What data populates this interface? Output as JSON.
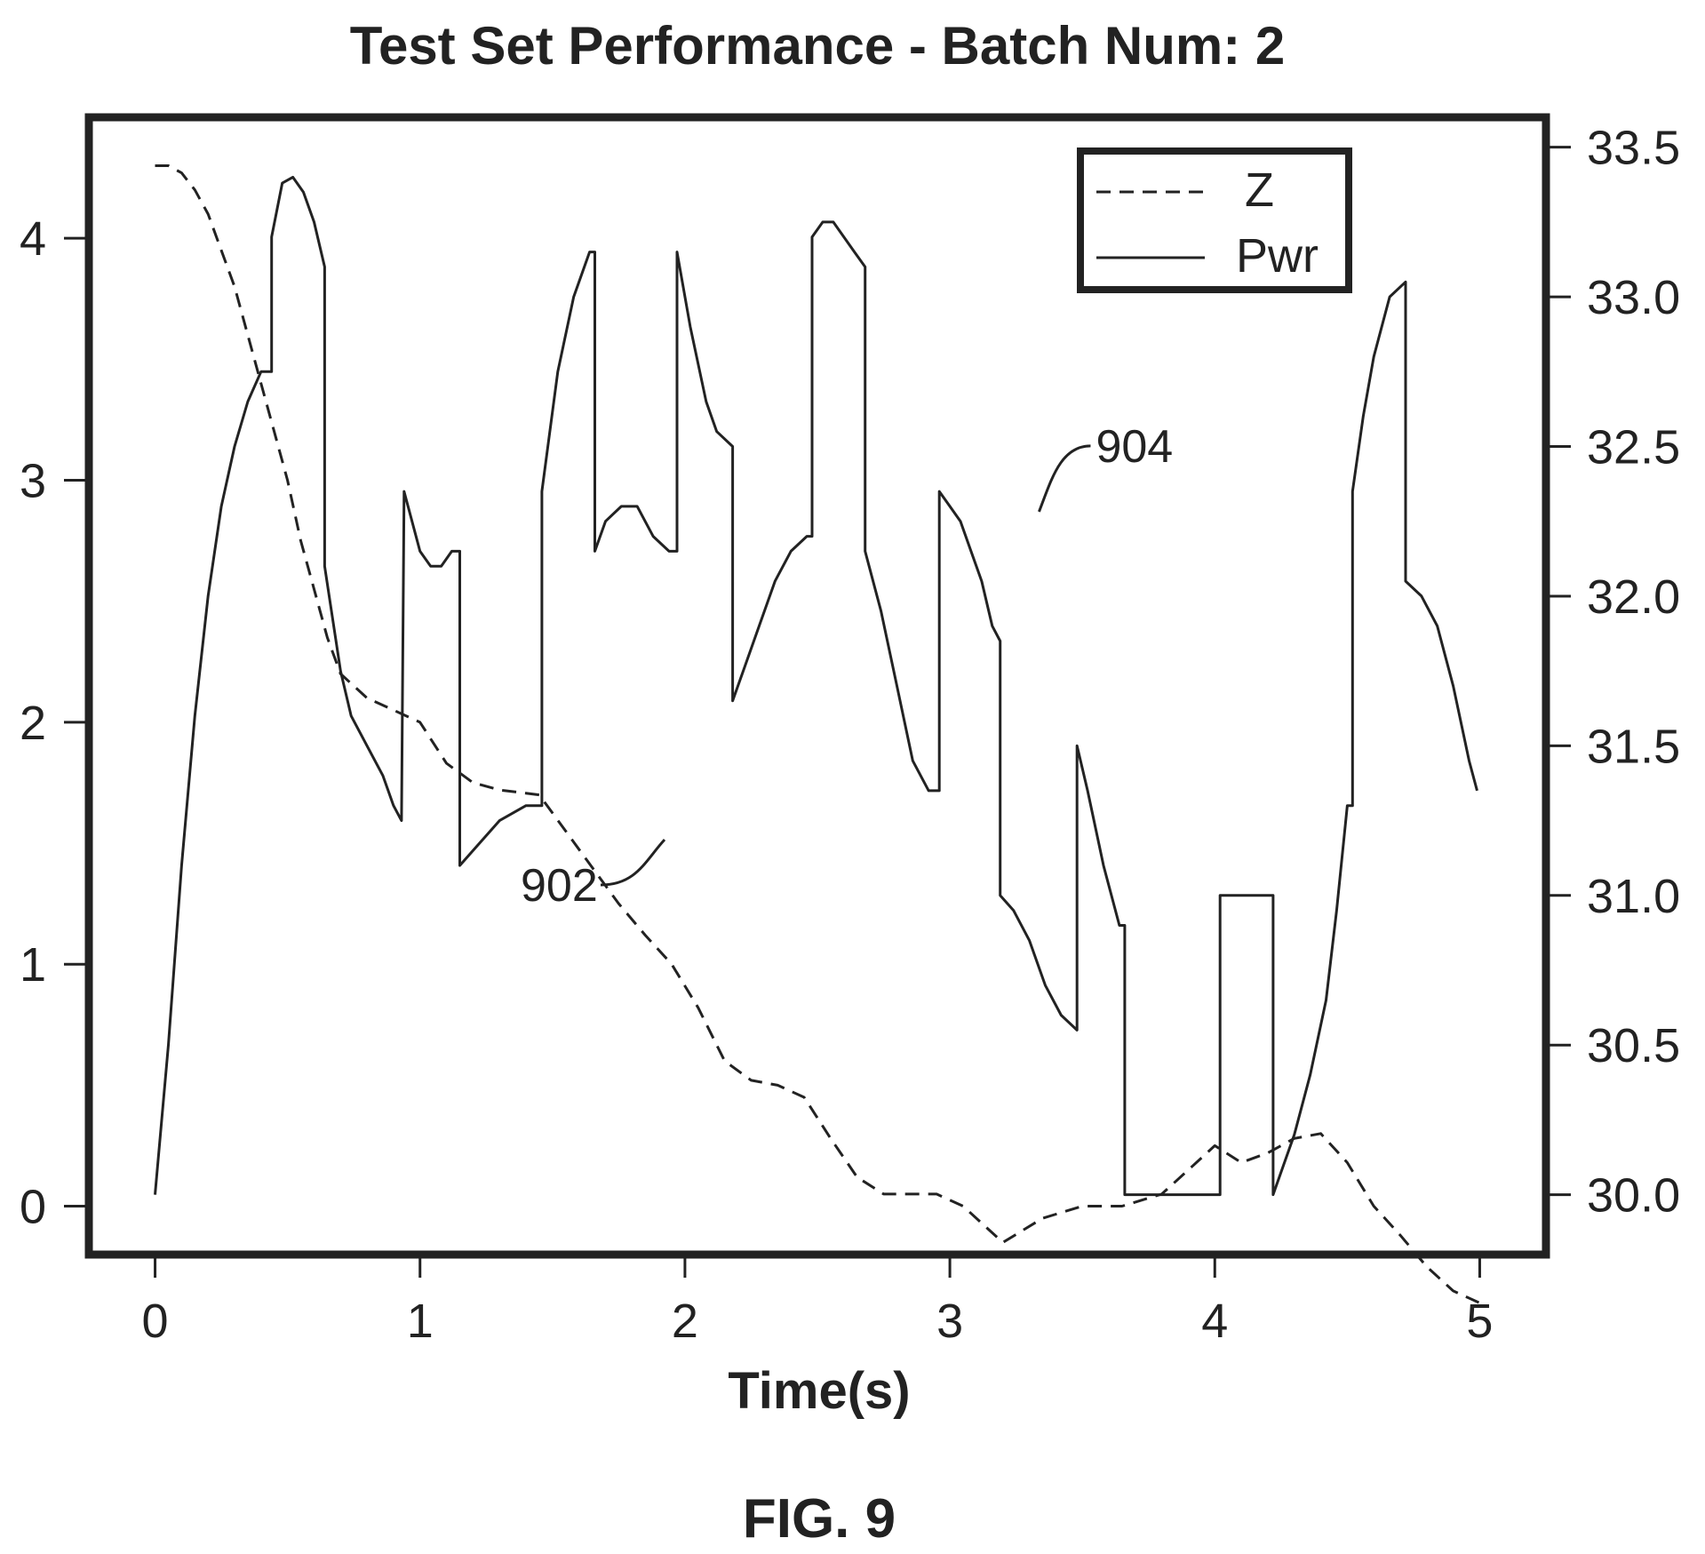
{
  "chart_data": {
    "type": "line",
    "title": "Test Set Performance - Batch Num:  2",
    "xlabel": "Time(s)",
    "caption": "FIG. 9",
    "xlim": [
      -0.25,
      5.25
    ],
    "xticks": [
      0,
      1,
      2,
      3,
      4,
      5
    ],
    "xtick_labels": [
      "0",
      "1",
      "2",
      "3",
      "4",
      "5"
    ],
    "left_axis": {
      "ylim": [
        -0.2,
        4.5
      ],
      "ticks": [
        0,
        1,
        2,
        3,
        4
      ],
      "tick_labels": [
        "0",
        "1",
        "2",
        "3",
        "4"
      ]
    },
    "right_axis": {
      "ylim": [
        29.8,
        33.6
      ],
      "ticks": [
        30.0,
        30.5,
        31.0,
        31.5,
        32.0,
        32.5,
        33.0,
        33.5
      ],
      "tick_labels": [
        "30.0",
        "30.5",
        "31.0",
        "31.5",
        "32.0",
        "32.5",
        "33.0",
        "33.5"
      ]
    },
    "grid": false,
    "legend_position": "top-right",
    "series": [
      {
        "name": "Z",
        "axis": "left",
        "style": "dashed",
        "x": [
          0,
          0.05,
          0.1,
          0.15,
          0.2,
          0.25,
          0.3,
          0.35,
          0.4,
          0.45,
          0.5,
          0.55,
          0.6,
          0.65,
          0.7,
          0.8,
          0.9,
          1.0,
          1.1,
          1.2,
          1.3,
          1.45,
          1.55,
          1.65,
          1.75,
          1.85,
          1.95,
          2.05,
          2.15,
          2.25,
          2.35,
          2.45,
          2.55,
          2.65,
          2.75,
          2.85,
          2.95,
          3.05,
          3.2,
          3.35,
          3.5,
          3.65,
          3.8,
          3.9,
          4.0,
          4.1,
          4.2,
          4.3,
          4.4,
          4.5,
          4.6,
          4.7,
          4.8,
          4.9,
          5.0
        ],
        "y": [
          4.3,
          4.3,
          4.27,
          4.2,
          4.1,
          3.95,
          3.8,
          3.6,
          3.4,
          3.2,
          3.0,
          2.75,
          2.55,
          2.35,
          2.2,
          2.1,
          2.05,
          2.0,
          1.83,
          1.75,
          1.72,
          1.7,
          1.55,
          1.4,
          1.25,
          1.12,
          1.0,
          0.82,
          0.6,
          0.52,
          0.5,
          0.45,
          0.28,
          0.12,
          0.05,
          0.05,
          0.05,
          0.0,
          -0.15,
          -0.05,
          0.0,
          0.0,
          0.05,
          0.15,
          0.25,
          0.18,
          0.22,
          0.28,
          0.3,
          0.18,
          0.0,
          -0.12,
          -0.25,
          -0.35,
          -0.4
        ]
      },
      {
        "name": "Pwr",
        "axis": "right",
        "style": "solid",
        "x": [
          0,
          0.05,
          0.1,
          0.15,
          0.2,
          0.25,
          0.3,
          0.35,
          0.4,
          0.44,
          0.44,
          0.48,
          0.52,
          0.56,
          0.6,
          0.64,
          0.64,
          0.7,
          0.74,
          0.8,
          0.86,
          0.9,
          0.93,
          0.94,
          0.94,
          1.0,
          1.04,
          1.08,
          1.12,
          1.15,
          1.15,
          1.2,
          1.3,
          1.4,
          1.46,
          1.46,
          1.52,
          1.58,
          1.64,
          1.66,
          1.66,
          1.7,
          1.76,
          1.82,
          1.88,
          1.94,
          1.97,
          1.97,
          2.02,
          2.08,
          2.12,
          2.18,
          2.18,
          2.22,
          2.28,
          2.34,
          2.4,
          2.46,
          2.48,
          2.48,
          2.52,
          2.56,
          2.6,
          2.64,
          2.68,
          2.68,
          2.74,
          2.8,
          2.86,
          2.92,
          2.96,
          2.96,
          3.0,
          3.04,
          3.08,
          3.12,
          3.16,
          3.19,
          3.19,
          3.24,
          3.3,
          3.36,
          3.42,
          3.48,
          3.48,
          3.52,
          3.58,
          3.64,
          3.66,
          3.66,
          3.7,
          3.7,
          4.02,
          4.02,
          4.1,
          4.2,
          4.22,
          4.22,
          4.26,
          4.3,
          4.36,
          4.42,
          4.46,
          4.5,
          4.52,
          4.52,
          4.56,
          4.6,
          4.66,
          4.72,
          4.72,
          4.78,
          4.84,
          4.9,
          4.96,
          4.99
        ],
        "y": [
          30.0,
          30.5,
          31.1,
          31.6,
          32.0,
          32.3,
          32.5,
          32.65,
          32.75,
          32.75,
          33.2,
          33.38,
          33.4,
          33.35,
          33.25,
          33.1,
          32.1,
          31.75,
          31.6,
          31.5,
          31.4,
          31.3,
          31.25,
          32.35,
          32.35,
          32.15,
          32.1,
          32.1,
          32.15,
          32.15,
          31.1,
          31.15,
          31.25,
          31.3,
          31.3,
          32.35,
          32.75,
          33.0,
          33.15,
          33.15,
          32.15,
          32.25,
          32.3,
          32.3,
          32.2,
          32.15,
          32.15,
          33.15,
          32.9,
          32.65,
          32.55,
          32.5,
          31.65,
          31.75,
          31.9,
          32.05,
          32.15,
          32.2,
          32.2,
          33.2,
          33.25,
          33.25,
          33.2,
          33.15,
          33.1,
          32.15,
          31.95,
          31.7,
          31.45,
          31.35,
          31.35,
          32.35,
          32.3,
          32.25,
          32.15,
          32.05,
          31.9,
          31.85,
          31.0,
          30.95,
          30.85,
          30.7,
          30.6,
          30.55,
          31.5,
          31.35,
          31.1,
          30.9,
          30.9,
          30.0,
          30.0,
          30.0,
          30.0,
          31.0,
          31.0,
          31.0,
          31.0,
          30.0,
          30.1,
          30.2,
          30.4,
          30.65,
          30.95,
          31.3,
          31.3,
          32.35,
          32.6,
          32.8,
          33.0,
          33.05,
          32.05,
          32.0,
          31.9,
          31.7,
          31.45,
          31.35
        ]
      }
    ],
    "annotations": [
      {
        "text": "902",
        "x": 1.95,
        "y": 1.5,
        "axis": "left"
      },
      {
        "text": "904",
        "x": 3.35,
        "y": 32.3,
        "axis": "right"
      }
    ]
  }
}
